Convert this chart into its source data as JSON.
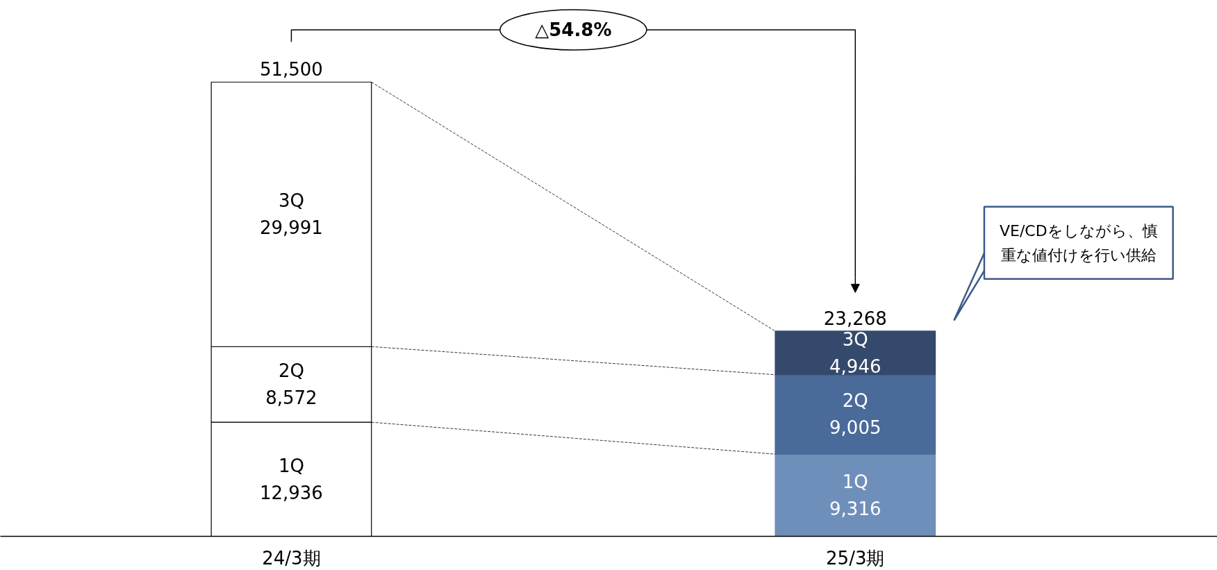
{
  "chart_data": {
    "type": "bar",
    "stacked": true,
    "categories": [
      "24/3期",
      "25/3期"
    ],
    "series": [
      {
        "name": "1Q",
        "values": [
          12936,
          9316
        ],
        "value_labels": [
          "12,936",
          "9,316"
        ],
        "colors": [
          "#ffffff",
          "#6f8fbb"
        ]
      },
      {
        "name": "2Q",
        "values": [
          8572,
          9005
        ],
        "value_labels": [
          "8,572",
          "9,005"
        ],
        "colors": [
          "#ffffff",
          "#4a6a9a"
        ]
      },
      {
        "name": "3Q",
        "values": [
          29991,
          4946
        ],
        "value_labels": [
          "29,991",
          "4,946"
        ],
        "colors": [
          "#ffffff",
          "#34496b"
        ]
      }
    ],
    "totals": [
      "51,500",
      "23,268"
    ],
    "tick_labels": "x",
    "grid": false,
    "annotations": [
      "△54.8%",
      "VE/CDをしながら、慎重な値付けを行い供給"
    ]
  }
}
